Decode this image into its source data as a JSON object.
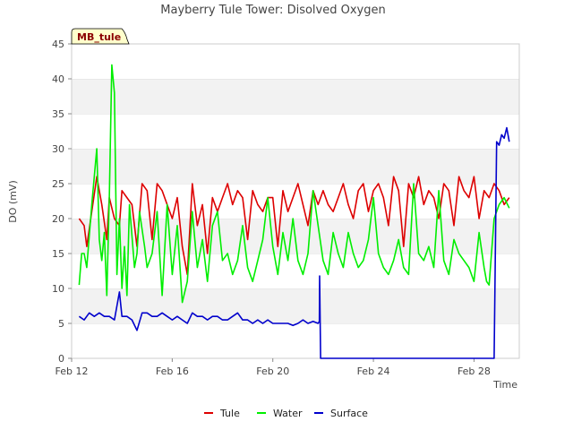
{
  "chart_data": {
    "type": "line",
    "title": "Mayberry Tule Tower: Disolved Oxygen",
    "xlabel": "Time",
    "ylabel": "DO (mV)",
    "badge": "MB_tule",
    "ylim": [
      0,
      45
    ],
    "xlim": [
      12,
      29.8
    ],
    "x_unit": "day of February",
    "yticks": [
      0,
      5,
      10,
      15,
      20,
      25,
      30,
      35,
      40,
      45
    ],
    "xticks": [
      {
        "value": 12,
        "label": "Feb 12"
      },
      {
        "value": 16,
        "label": "Feb 16"
      },
      {
        "value": 20,
        "label": "Feb 20"
      },
      {
        "value": 24,
        "label": "Feb 24"
      },
      {
        "value": 28,
        "label": "Feb 28"
      }
    ],
    "grid": "horizontal bands",
    "legend": "bottom",
    "series": [
      {
        "name": "Tule",
        "color": "#dd0000",
        "x": [
          12.3,
          12.5,
          12.6,
          12.8,
          13.0,
          13.2,
          13.4,
          13.5,
          13.7,
          13.9,
          14.0,
          14.2,
          14.4,
          14.6,
          14.8,
          15.0,
          15.2,
          15.4,
          15.6,
          15.8,
          16.0,
          16.2,
          16.4,
          16.6,
          16.8,
          17.0,
          17.2,
          17.4,
          17.6,
          17.8,
          18.0,
          18.2,
          18.4,
          18.6,
          18.8,
          19.0,
          19.2,
          19.4,
          19.6,
          19.8,
          20.0,
          20.2,
          20.4,
          20.6,
          20.8,
          21.0,
          21.2,
          21.4,
          21.6,
          21.8,
          22.0,
          22.2,
          22.4,
          22.6,
          22.8,
          23.0,
          23.2,
          23.4,
          23.6,
          23.8,
          24.0,
          24.2,
          24.4,
          24.6,
          24.8,
          25.0,
          25.2,
          25.4,
          25.6,
          25.8,
          26.0,
          26.2,
          26.4,
          26.6,
          26.8,
          27.0,
          27.2,
          27.4,
          27.6,
          27.8,
          28.0,
          28.2,
          28.4,
          28.6,
          28.8,
          29.0,
          29.2,
          29.4
        ],
        "values": [
          20,
          19,
          16,
          21,
          26,
          22,
          17,
          23,
          20,
          19,
          24,
          23,
          22,
          16,
          25,
          24,
          17,
          25,
          24,
          22,
          20,
          23,
          16,
          12,
          25,
          19,
          22,
          15,
          23,
          21,
          23,
          25,
          22,
          24,
          23,
          17,
          24,
          22,
          21,
          23,
          23,
          16,
          24,
          21,
          23,
          25,
          22,
          19,
          24,
          22,
          24,
          22,
          21,
          23,
          25,
          22,
          20,
          24,
          25,
          21,
          24,
          25,
          23,
          19,
          26,
          24,
          16,
          25,
          23,
          26,
          22,
          24,
          23,
          20,
          25,
          24,
          19,
          26,
          24,
          23,
          26,
          20,
          24,
          23,
          25,
          24,
          22,
          23
        ]
      },
      {
        "name": "Water",
        "color": "#00ee00",
        "x": [
          12.3,
          12.4,
          12.5,
          12.6,
          12.8,
          13.0,
          13.1,
          13.2,
          13.3,
          13.4,
          13.5,
          13.6,
          13.7,
          13.8,
          13.9,
          14.0,
          14.1,
          14.2,
          14.3,
          14.5,
          14.6,
          14.7,
          14.9,
          15.0,
          15.2,
          15.4,
          15.6,
          15.8,
          16.0,
          16.2,
          16.4,
          16.6,
          16.8,
          17.0,
          17.2,
          17.4,
          17.6,
          17.8,
          18.0,
          18.2,
          18.4,
          18.6,
          18.8,
          19.0,
          19.2,
          19.4,
          19.6,
          19.8,
          20.0,
          20.2,
          20.4,
          20.6,
          20.8,
          21.0,
          21.2,
          21.4,
          21.6,
          21.8,
          22.0,
          22.2,
          22.4,
          22.6,
          22.8,
          23.0,
          23.2,
          23.4,
          23.6,
          23.8,
          24.0,
          24.2,
          24.4,
          24.6,
          24.8,
          25.0,
          25.2,
          25.4,
          25.6,
          25.8,
          26.0,
          26.2,
          26.4,
          26.6,
          26.8,
          27.0,
          27.2,
          27.4,
          27.6,
          27.8,
          28.0,
          28.2,
          28.4,
          28.5,
          28.6,
          28.8,
          29.0,
          29.2,
          29.4
        ],
        "values": [
          10.5,
          15,
          15,
          13,
          22,
          30,
          17,
          14,
          18,
          9,
          23,
          42,
          38,
          12,
          20,
          10,
          16,
          9,
          22,
          13,
          15,
          21,
          16,
          13,
          15,
          21,
          9,
          22,
          12,
          19,
          8,
          11,
          21,
          13,
          17,
          11,
          19,
          21,
          14,
          15,
          12,
          14,
          19,
          13,
          11,
          14,
          17,
          23,
          16,
          12,
          18,
          14,
          20,
          14,
          12,
          15,
          24,
          19,
          14,
          12,
          18,
          15,
          13,
          18,
          15,
          13,
          14,
          17,
          23,
          15,
          13,
          12,
          14,
          17,
          13,
          12,
          25,
          15,
          14,
          16,
          13,
          24,
          14,
          12,
          17,
          15,
          14,
          13,
          11,
          18,
          13,
          11,
          10.5,
          20,
          22,
          23,
          21.5
        ]
      },
      {
        "name": "Surface",
        "color": "#0000cc",
        "x": [
          12.3,
          12.5,
          12.7,
          12.9,
          13.1,
          13.3,
          13.5,
          13.7,
          13.9,
          14.0,
          14.2,
          14.4,
          14.6,
          14.8,
          15.0,
          15.2,
          15.4,
          15.6,
          15.8,
          16.0,
          16.2,
          16.4,
          16.6,
          16.8,
          17.0,
          17.2,
          17.4,
          17.6,
          17.8,
          18.0,
          18.2,
          18.4,
          18.6,
          18.8,
          19.0,
          19.2,
          19.4,
          19.6,
          19.8,
          20.0,
          20.2,
          20.4,
          20.6,
          20.8,
          21.0,
          21.2,
          21.4,
          21.6,
          21.8,
          21.85,
          21.86,
          21.9,
          28.8,
          28.9,
          29.0,
          29.1,
          29.2,
          29.3,
          29.4
        ],
        "values": [
          6,
          5.5,
          6.5,
          6,
          6.5,
          6,
          6,
          5.5,
          9.5,
          6,
          6,
          5.5,
          4,
          6.5,
          6.5,
          6,
          6,
          6.5,
          6,
          5.5,
          6,
          5.5,
          5,
          6.5,
          6,
          6,
          5.5,
          6,
          6,
          5.5,
          5.5,
          6,
          6.5,
          5.5,
          5.5,
          5,
          5.5,
          5,
          5.5,
          5,
          5,
          5,
          5,
          4.7,
          5,
          5.5,
          5,
          5.3,
          5,
          5.3,
          11.8,
          0,
          0,
          31,
          30.5,
          32,
          31.5,
          33,
          31
        ]
      }
    ]
  }
}
